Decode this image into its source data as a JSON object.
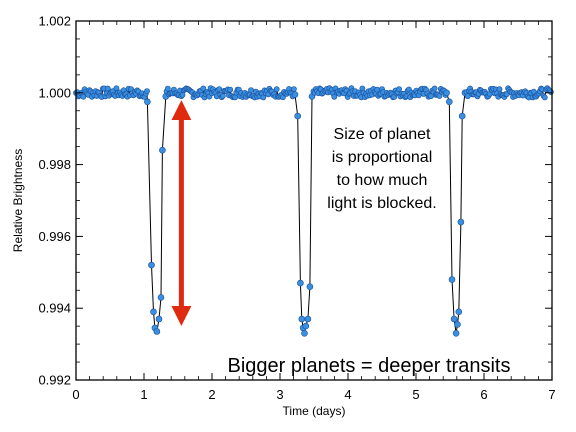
{
  "chart_data": {
    "type": "scatter",
    "title": "",
    "xlabel": "Time (days)",
    "ylabel": "Relative Brightness",
    "xlim": [
      0,
      7
    ],
    "ylim": [
      0.992,
      1.002
    ],
    "xticks": [
      0,
      1,
      2,
      3,
      4,
      5,
      6,
      7
    ],
    "xtick_labels": [
      "0",
      "1",
      "2",
      "3",
      "4",
      "5",
      "6",
      "7"
    ],
    "yticks": [
      0.992,
      0.994,
      0.996,
      0.998,
      1.0,
      1.002
    ],
    "ytick_labels": [
      "0.992",
      "0.994",
      "0.996",
      "0.998",
      "1.000",
      "1.002"
    ],
    "grid": false,
    "marker_color": "#3a8fe0",
    "line_color": "#000000",
    "arrow_color": "#e02a10",
    "baseline": 1.0,
    "transits": [
      {
        "center": 1.2,
        "depth_min": 0.99335,
        "points": [
          {
            "x": 1.05,
            "y": 0.99975
          },
          {
            "x": 1.11,
            "y": 0.9952
          },
          {
            "x": 1.14,
            "y": 0.9939
          },
          {
            "x": 1.16,
            "y": 0.99345
          },
          {
            "x": 1.19,
            "y": 0.99335
          },
          {
            "x": 1.22,
            "y": 0.9937
          },
          {
            "x": 1.25,
            "y": 0.9943
          },
          {
            "x": 1.27,
            "y": 0.9984
          },
          {
            "x": 1.32,
            "y": 0.9999
          }
        ]
      },
      {
        "center": 3.35,
        "depth_min": 0.9933,
        "points": [
          {
            "x": 3.22,
            "y": 0.99995
          },
          {
            "x": 3.26,
            "y": 0.99935
          },
          {
            "x": 3.3,
            "y": 0.9947
          },
          {
            "x": 3.32,
            "y": 0.9937
          },
          {
            "x": 3.34,
            "y": 0.99345
          },
          {
            "x": 3.36,
            "y": 0.9933
          },
          {
            "x": 3.38,
            "y": 0.9935
          },
          {
            "x": 3.41,
            "y": 0.9937
          },
          {
            "x": 3.44,
            "y": 0.9946
          },
          {
            "x": 3.47,
            "y": 0.9999
          }
        ]
      },
      {
        "center": 5.58,
        "depth_min": 0.9933,
        "points": [
          {
            "x": 5.45,
            "y": 1.0
          },
          {
            "x": 5.49,
            "y": 0.99975
          },
          {
            "x": 5.53,
            "y": 0.9948
          },
          {
            "x": 5.56,
            "y": 0.9937
          },
          {
            "x": 5.59,
            "y": 0.9933
          },
          {
            "x": 5.61,
            "y": 0.99355
          },
          {
            "x": 5.63,
            "y": 0.9939
          },
          {
            "x": 5.66,
            "y": 0.9964
          },
          {
            "x": 5.68,
            "y": 0.99935
          },
          {
            "x": 5.72,
            "y": 1.0
          }
        ]
      }
    ],
    "arrow": {
      "x": 1.55,
      "y_top": 0.99985,
      "y_bottom": 0.99345
    },
    "annotation_lines": [
      "Size of planet",
      "is proportional",
      "to how much",
      "light is blocked."
    ],
    "headline": "Bigger planets = deeper transits"
  }
}
